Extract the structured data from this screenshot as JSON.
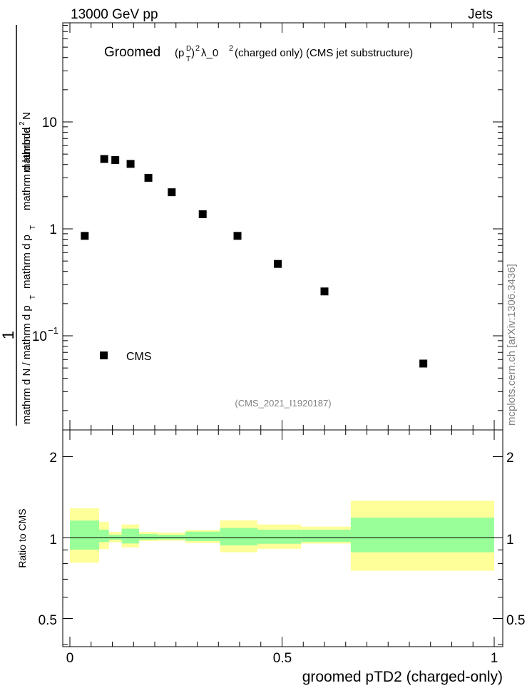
{
  "header": {
    "left": "13000 GeV pp",
    "right": "Jets"
  },
  "plot_title": {
    "main": "Groomed",
    "p": "(p",
    "sup_d": "D",
    "sub_t": "T",
    "close_sq": ")",
    "sq": "2",
    "lambda": " λ_0",
    "lambda_sq": "2",
    "rest": "  (charged only) (CMS jet substructure)"
  },
  "watermark": "mcplots.cern.ch [arXiv:1306.3436]",
  "analysis_id": "(CMS_2021_I1920187)",
  "y_label_main": {
    "one": "1",
    "denominator": "mathrm d N / mathrm d p",
    "denominator_sub": "T",
    "numerator_a": "mathrm d",
    "numerator_sup": "2",
    "numerator_b": "N",
    "numer2": "mathrm d p",
    "numer2_sub": "T",
    "numer3": "mathrm d lambda"
  },
  "main_tick_labels": {
    "y10": "10",
    "y1": "1",
    "y01_base": "10",
    "y01_exp": "−1"
  },
  "legend": {
    "label": "CMS"
  },
  "ratio_label": "Ratio to CMS",
  "ratio_tick_labels": [
    "2",
    "1",
    "0.5"
  ],
  "x_tick_labels": [
    "0",
    "0.5",
    "1"
  ],
  "x_label": "groomed pTD2 (charged-only)",
  "colors": {
    "band_outer": "#ffff99",
    "band_inner": "#99ff99",
    "marker": "#000000",
    "watermark": "#808080"
  },
  "chart_data": {
    "type": "scatter",
    "title": "Groomed (p_T^D)^2 λ_0^2 (charged only) (CMS jet substructure)",
    "xlabel": "groomed pTD2 (charged-only)",
    "ylabel": "1 / (mathrm d N / mathrm d p_T) · mathrm d^2 N / (mathrm d p_T mathrm d lambda)",
    "xlim": [
      -0.02,
      1.02
    ],
    "ylim": [
      0.016,
      70
    ],
    "yscale": "log",
    "legend_position": "bottom-left",
    "series": [
      {
        "name": "CMS",
        "marker": "square",
        "x": [
          0.035,
          0.081,
          0.107,
          0.143,
          0.185,
          0.24,
          0.313,
          0.395,
          0.49,
          0.6,
          0.833
        ],
        "y": [
          0.86,
          4.5,
          4.4,
          4.05,
          3.0,
          2.2,
          1.37,
          0.86,
          0.47,
          0.26,
          0.055
        ]
      }
    ],
    "ratio": {
      "ylabel": "Ratio to CMS",
      "yscale": "log",
      "ylim": [
        0.38,
        2.6
      ],
      "reference_line": 1,
      "bins": [
        {
          "x0": 0.0,
          "x1": 0.069,
          "inner": [
            0.902,
            1.157
          ],
          "outer": [
            0.806,
            1.285
          ]
        },
        {
          "x0": 0.069,
          "x1": 0.092,
          "inner": [
            0.963,
            1.07
          ],
          "outer": [
            0.906,
            1.143
          ]
        },
        {
          "x0": 0.092,
          "x1": 0.122,
          "inner": [
            0.982,
            1.024
          ],
          "outer": [
            0.961,
            1.049
          ]
        },
        {
          "x0": 0.122,
          "x1": 0.163,
          "inner": [
            0.951,
            1.079
          ],
          "outer": [
            0.919,
            1.119
          ]
        },
        {
          "x0": 0.163,
          "x1": 0.207,
          "inner": [
            0.982,
            1.03
          ],
          "outer": [
            0.97,
            1.049
          ]
        },
        {
          "x0": 0.207,
          "x1": 0.272,
          "inner": [
            0.985,
            1.024
          ],
          "outer": [
            0.973,
            1.043
          ]
        },
        {
          "x0": 0.272,
          "x1": 0.354,
          "inner": [
            0.971,
            1.052
          ],
          "outer": [
            0.954,
            1.066
          ]
        },
        {
          "x0": 0.354,
          "x1": 0.442,
          "inner": [
            0.935,
            1.086
          ],
          "outer": [
            0.882,
            1.16
          ]
        },
        {
          "x0": 0.442,
          "x1": 0.545,
          "inner": [
            0.948,
            1.07
          ],
          "outer": [
            0.908,
            1.119
          ]
        },
        {
          "x0": 0.545,
          "x1": 0.662,
          "inner": [
            0.963,
            1.07
          ],
          "outer": [
            0.95,
            1.098
          ]
        },
        {
          "x0": 0.662,
          "x1": 1.0,
          "inner": [
            0.882,
            1.187
          ],
          "outer": [
            0.753,
            1.371
          ]
        }
      ]
    }
  }
}
